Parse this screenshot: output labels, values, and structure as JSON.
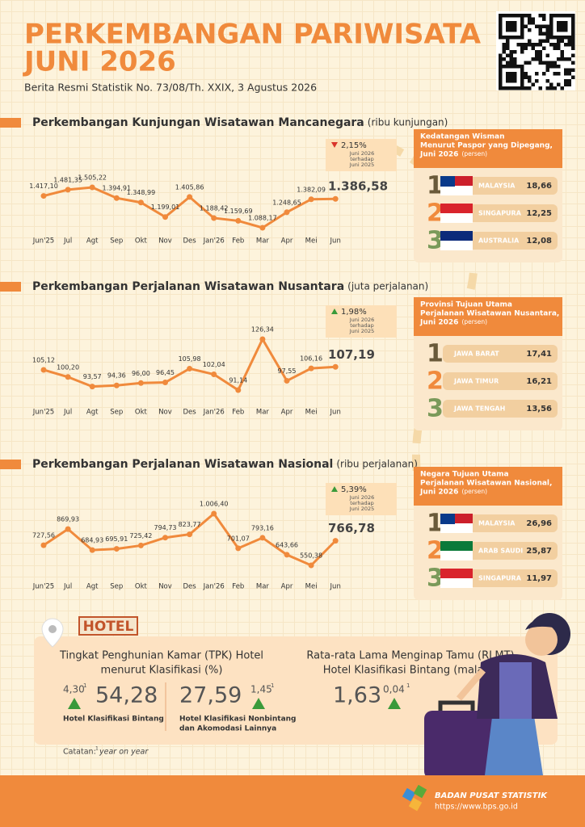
{
  "header": {
    "title_lines": [
      "PERKEMBANGAN PARIWISATA",
      "JUNI 2026"
    ],
    "subtitle": "Berita Resmi Statistik No. 73/08/Th. XXIX, 3 Agustus 2026"
  },
  "chart_data": [
    {
      "type": "line",
      "title": "Perkembangan Kunjungan Wisatawan Mancanegara",
      "unit": "(ribu kunjungan)",
      "color": "#f08a3c",
      "categories": [
        "Jun'25",
        "Jul",
        "Agt",
        "Sep",
        "Okt",
        "Nov",
        "Des",
        "Jan'26",
        "Feb",
        "Mar",
        "Apr",
        "Mei",
        "Jun"
      ],
      "values": [
        1417.1,
        1481.35,
        1505.22,
        1394.91,
        1348.99,
        1199.01,
        1405.86,
        1188.42,
        1159.69,
        1088.17,
        1248.65,
        1382.09,
        1386.58
      ],
      "value_labels": [
        "1.417,10",
        "1.481,35",
        "1.505,22",
        "1.394,91",
        "1.348,99",
        "1.199,01",
        "1.405,86",
        "1.188,42",
        "1.159,69",
        "1.088,17",
        "1.248,65",
        "1.382,09",
        "1.386,58"
      ],
      "change": {
        "direction": "down",
        "label": "2,15%",
        "note": [
          "Juni 2026",
          "terhadap",
          "Juni 2025"
        ]
      }
    },
    {
      "type": "line",
      "title": "Perkembangan Perjalanan Wisatawan Nusantara",
      "unit": "(juta perjalanan)",
      "color": "#f08a3c",
      "categories": [
        "Jun'25",
        "Jul",
        "Agt",
        "Sep",
        "Okt",
        "Nov",
        "Des",
        "Jan'26",
        "Feb",
        "Mar",
        "Apr",
        "Mei",
        "Jun"
      ],
      "values": [
        105.12,
        100.2,
        93.57,
        94.36,
        96.0,
        96.45,
        105.98,
        102.04,
        91.14,
        126.34,
        97.55,
        106.16,
        107.19
      ],
      "value_labels": [
        "105,12",
        "100,20",
        "93,57",
        "94,36",
        "96,00",
        "96,45",
        "105,98",
        "102,04",
        "91,14",
        "126,34",
        "97,55",
        "106,16",
        "107,19"
      ],
      "change": {
        "direction": "up",
        "label": "1,98%",
        "note": [
          "Juni 2026",
          "terhadap",
          "Juni 2025"
        ]
      }
    },
    {
      "type": "line",
      "title": "Perkembangan Perjalanan Wisatawan Nasional",
      "unit": "(ribu perjalanan)",
      "color": "#f08a3c",
      "categories": [
        "Jun'25",
        "Jul",
        "Agt",
        "Sep",
        "Okt",
        "Nov",
        "Des",
        "Jan'26",
        "Feb",
        "Mar",
        "Apr",
        "Mei",
        "Jun"
      ],
      "values": [
        727.56,
        869.93,
        684.93,
        695.91,
        725.42,
        794.73,
        823.77,
        1006.4,
        701.07,
        793.16,
        643.66,
        550.38,
        766.78
      ],
      "value_labels": [
        "727,56",
        "869,93",
        "684,93",
        "695,91",
        "725,42",
        "794,73",
        "823,77",
        "1.006,40",
        "701,07",
        "793,16",
        "643,66",
        "550,38",
        "766,78"
      ],
      "change": {
        "direction": "up",
        "label": "5,39%",
        "note": [
          "Juni 2026",
          "terhadap",
          "Juni 2025"
        ]
      }
    }
  ],
  "panels": [
    {
      "title_lines": [
        "Kedatangan Wisman",
        "Menurut Paspor yang Dipegang,",
        "Juni 2026"
      ],
      "unit": "(persen)",
      "items": [
        {
          "rank": "1",
          "name": "MALAYSIA",
          "value": "18,66"
        },
        {
          "rank": "2",
          "name": "SINGAPURA",
          "value": "12,25"
        },
        {
          "rank": "3",
          "name": "AUSTRALIA",
          "value": "12,08"
        }
      ]
    },
    {
      "title_lines": [
        "Provinsi Tujuan Utama",
        "Perjalanan Wisatawan Nusantara,",
        "Juni 2026"
      ],
      "unit": "(persen)",
      "items": [
        {
          "rank": "1",
          "name": "JAWA BARAT",
          "value": "17,41"
        },
        {
          "rank": "2",
          "name": "JAWA TIMUR",
          "value": "16,21"
        },
        {
          "rank": "3",
          "name": "JAWA TENGAH",
          "value": "13,56"
        }
      ]
    },
    {
      "title_lines": [
        "Negara Tujuan Utama",
        "Perjalanan Wisatawan Nasional,",
        "Juni 2026"
      ],
      "unit": "(persen)",
      "items": [
        {
          "rank": "1",
          "name": "MALAYSIA",
          "value": "26,96"
        },
        {
          "rank": "2",
          "name": "ARAB SAUDI",
          "value": "25,87"
        },
        {
          "rank": "3",
          "name": "SINGAPURA",
          "value": "11,97"
        }
      ]
    }
  ],
  "hotel": {
    "sign": "HOTEL",
    "tpk_title": [
      "Tingkat Penghunian Kamar (TPK) Hotel",
      "menurut Klasifikasi (%)"
    ],
    "bintang": {
      "value": "54,28",
      "change": "4,30",
      "label": [
        "Hotel Klasifikasi Bintang"
      ]
    },
    "nonbintang": {
      "value": "27,59",
      "change": "1,45",
      "label": [
        "Hotel Klasifikasi Nonbintang",
        "dan Akomodasi Lainnya"
      ]
    },
    "rlmt_title": [
      "Rata-rata Lama Menginap Tamu (RLMT)",
      "Hotel Klasifikasi Bintang (malam)"
    ],
    "rlmt": {
      "value": "1,63",
      "change": "0,04"
    },
    "note_mark": "1",
    "catatan": "Catatan:",
    "note_text": "year on year"
  },
  "footer": {
    "org": "BADAN PUSAT STATISTIK",
    "url": "https://www.bps.go.id"
  }
}
